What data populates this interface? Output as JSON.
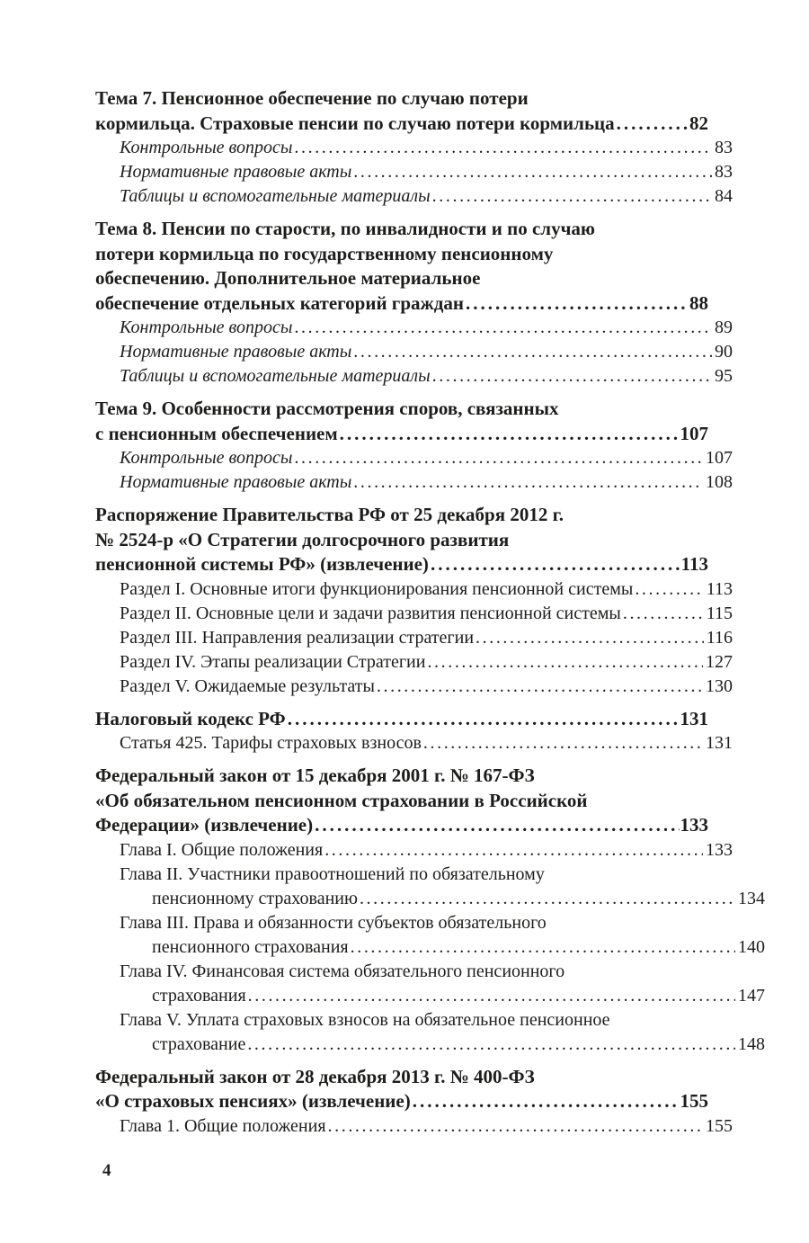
{
  "page": {
    "footer_page_number": "4"
  },
  "toc": {
    "entries": [
      {
        "style": "heading",
        "lines": [
          "Тема 7. Пенсионное обеспечение по случаю потери",
          "кормильца. Страховые пенсии по случаю потери кормильца"
        ],
        "page": "82"
      },
      {
        "style": "italic-sub",
        "lines": [
          "Контрольные вопросы"
        ],
        "page": "83"
      },
      {
        "style": "italic-sub",
        "lines": [
          "Нормативные правовые акты"
        ],
        "page": "83"
      },
      {
        "style": "italic-sub",
        "lines": [
          "Таблицы и вспомогательные материалы"
        ],
        "page": "84"
      },
      {
        "style": "heading",
        "lines": [
          "Тема 8. Пенсии по старости, по инвалидности и по случаю",
          "потери кормильца по государственному пенсионному",
          "обеспечению. Дополнительное материальное",
          "обеспечение отдельных категорий граждан"
        ],
        "page": "88"
      },
      {
        "style": "italic-sub",
        "lines": [
          "Контрольные вопросы"
        ],
        "page": "89"
      },
      {
        "style": "italic-sub",
        "lines": [
          "Нормативные правовые акты"
        ],
        "page": "90"
      },
      {
        "style": "italic-sub",
        "lines": [
          "Таблицы и вспомогательные материалы"
        ],
        "page": "95"
      },
      {
        "style": "heading",
        "lines": [
          "Тема 9. Особенности рассмотрения споров, связанных",
          "с пенсионным обеспечением"
        ],
        "page": "107"
      },
      {
        "style": "italic-sub",
        "lines": [
          "Контрольные вопросы"
        ],
        "page": "107"
      },
      {
        "style": "italic-sub",
        "lines": [
          "Нормативные правовые акты"
        ],
        "page": "108"
      },
      {
        "style": "heading",
        "lines": [
          "Распоряжение Правительства РФ от 25 декабря 2012 г.",
          "№ 2524-р «О Стратегии долгосрочного развития",
          "пенсионной системы РФ» (извлечение)"
        ],
        "page": "113"
      },
      {
        "style": "sub",
        "lines": [
          "Раздел I. Основные итоги функционирования пенсионной системы"
        ],
        "page": "113"
      },
      {
        "style": "sub",
        "lines": [
          "Раздел II. Основные цели и задачи развития пенсионной системы"
        ],
        "page": "115"
      },
      {
        "style": "sub",
        "lines": [
          "Раздел III. Направления реализации стратегии"
        ],
        "page": "116"
      },
      {
        "style": "sub",
        "lines": [
          "Раздел IV. Этапы реализации Стратегии"
        ],
        "page": "127"
      },
      {
        "style": "sub",
        "lines": [
          "Раздел V. Ожидаемые результаты"
        ],
        "page": "130"
      },
      {
        "style": "heading",
        "lines": [
          "Налоговый кодекс РФ"
        ],
        "page": "131"
      },
      {
        "style": "sub",
        "lines": [
          "Статья 425. Тарифы страховых взносов"
        ],
        "page": "131"
      },
      {
        "style": "heading",
        "lines": [
          "Федеральный закон от 15 декабря 2001 г. № 167-ФЗ",
          "«Об обязательном пенсионном страховании в Российской",
          "Федерации» (извлечение)"
        ],
        "page": "133"
      },
      {
        "style": "sub",
        "lines": [
          "Глава I. Общие положения"
        ],
        "page": "133"
      },
      {
        "style": "sub",
        "lines": [
          "Глава II. Участники правоотношений по обязательному",
          "пенсионному страхованию"
        ],
        "page": "134"
      },
      {
        "style": "sub",
        "lines": [
          "Глава III. Права и обязанности субъектов обязательного",
          "пенсионного страхования"
        ],
        "page": "140"
      },
      {
        "style": "sub",
        "lines": [
          "Глава IV. Финансовая система обязательного пенсионного",
          "страхования"
        ],
        "page": "147"
      },
      {
        "style": "sub",
        "lines": [
          "Глава V. Уплата страховых взносов на обязательное пенсионное",
          "страхование"
        ],
        "page": "148"
      },
      {
        "style": "heading",
        "lines": [
          "Федеральный закон от 28 декабря 2013 г. № 400-ФЗ",
          "«О страховых пенсиях» (извлечение)"
        ],
        "page": "155"
      },
      {
        "style": "sub",
        "lines": [
          "Глава 1. Общие положения"
        ],
        "page": "155"
      }
    ]
  }
}
